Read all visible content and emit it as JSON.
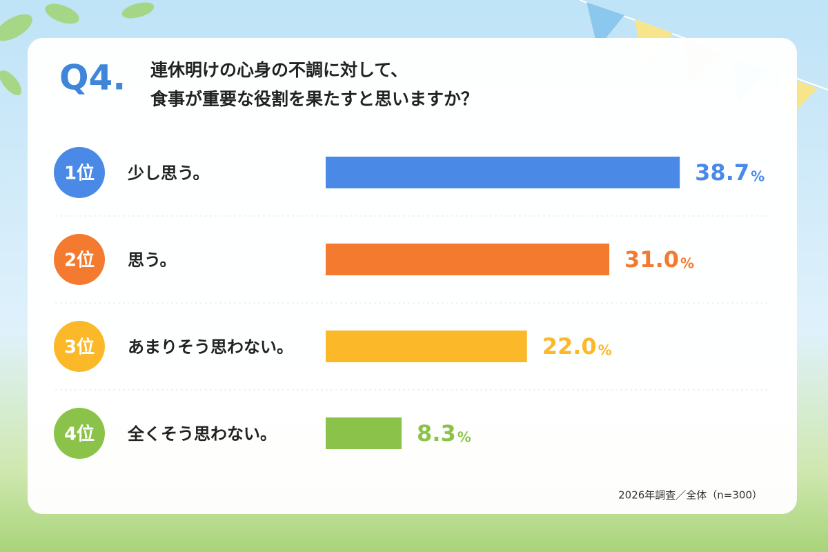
{
  "chart_data": {
    "type": "bar",
    "question_number": "Q4.",
    "title_lines": [
      "連休明けの心身の不調に対して、",
      "食事が重要な役割を果たすと思いますか？"
    ],
    "ranks": [
      "1位",
      "2位",
      "3位",
      "4位"
    ],
    "categories": [
      "少し思う。",
      "思う。",
      "あまりそう思わない。",
      "全くそう思わない。"
    ],
    "values": [
      38.7,
      31.0,
      22.0,
      8.3
    ],
    "value_labels": [
      "38.7",
      "31.0",
      "22.0",
      "8.3"
    ],
    "unit": "%",
    "colors": [
      "#4a8ae6",
      "#f47a30",
      "#fbb92a",
      "#8bc34a"
    ],
    "note": "2026年調査／全体（n=300）"
  }
}
